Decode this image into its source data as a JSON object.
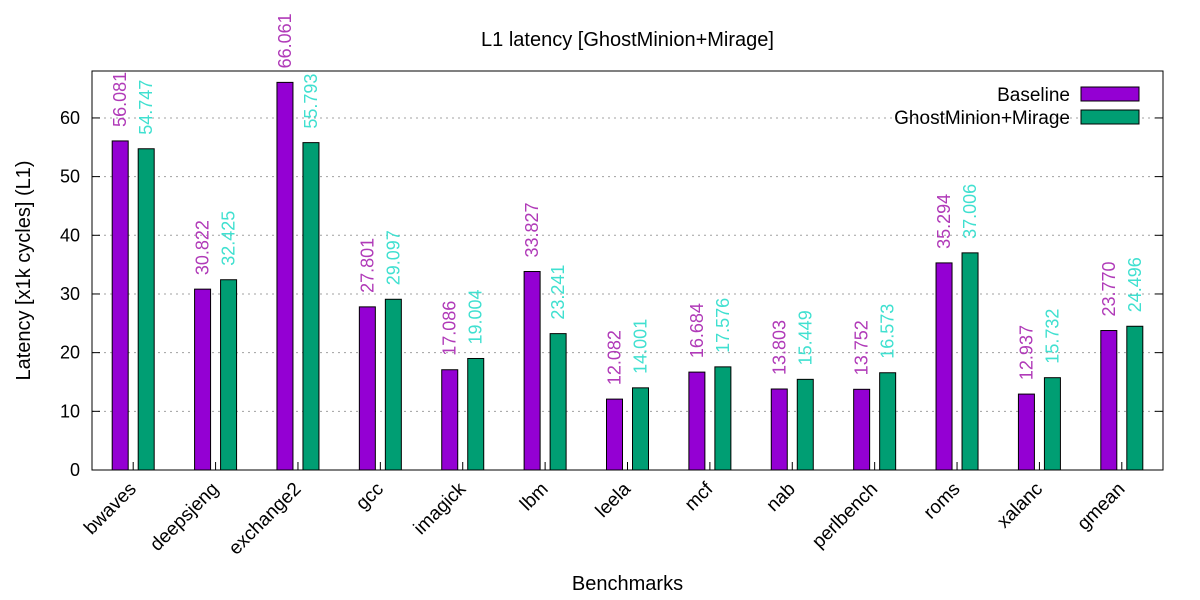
{
  "chart_data": {
    "type": "bar",
    "title": "L1 latency [GhostMinion+Mirage]",
    "xlabel": "Benchmarks",
    "ylabel": "Latency [x1k cycles] (L1)",
    "ylim": [
      0,
      68
    ],
    "yticks": [
      0,
      10,
      20,
      30,
      40,
      50,
      60
    ],
    "grid": true,
    "legend": "top-right",
    "categories": [
      "bwaves",
      "deepsjeng",
      "exchange2",
      "gcc",
      "imagick",
      "lbm",
      "leela",
      "mcf",
      "nab",
      "perlbench",
      "roms",
      "xalanc",
      "gmean"
    ],
    "series": [
      {
        "name": "Baseline",
        "color": "#9400d3",
        "label_color": "#b03ab8",
        "values": [
          56.081,
          30.822,
          66.061,
          27.801,
          17.086,
          33.827,
          12.082,
          16.684,
          13.803,
          13.752,
          35.294,
          12.937,
          23.77
        ],
        "labels": [
          "56.081",
          "30.822",
          "66.061",
          "27.801",
          "17.086",
          "33.827",
          "12.082",
          "16.684",
          "13.803",
          "13.752",
          "35.294",
          "12.937",
          "23.770"
        ]
      },
      {
        "name": "GhostMinion+Mirage",
        "color": "#009e73",
        "label_color": "#40e0d0",
        "values": [
          54.747,
          32.425,
          55.793,
          29.097,
          19.004,
          23.241,
          14.001,
          17.576,
          15.449,
          16.573,
          37.006,
          15.732,
          24.496
        ],
        "labels": [
          "54.747",
          "32.425",
          "55.793",
          "29.097",
          "19.004",
          "23.241",
          "14.001",
          "17.576",
          "15.449",
          "16.573",
          "37.006",
          "15.732",
          "24.496"
        ]
      }
    ]
  }
}
